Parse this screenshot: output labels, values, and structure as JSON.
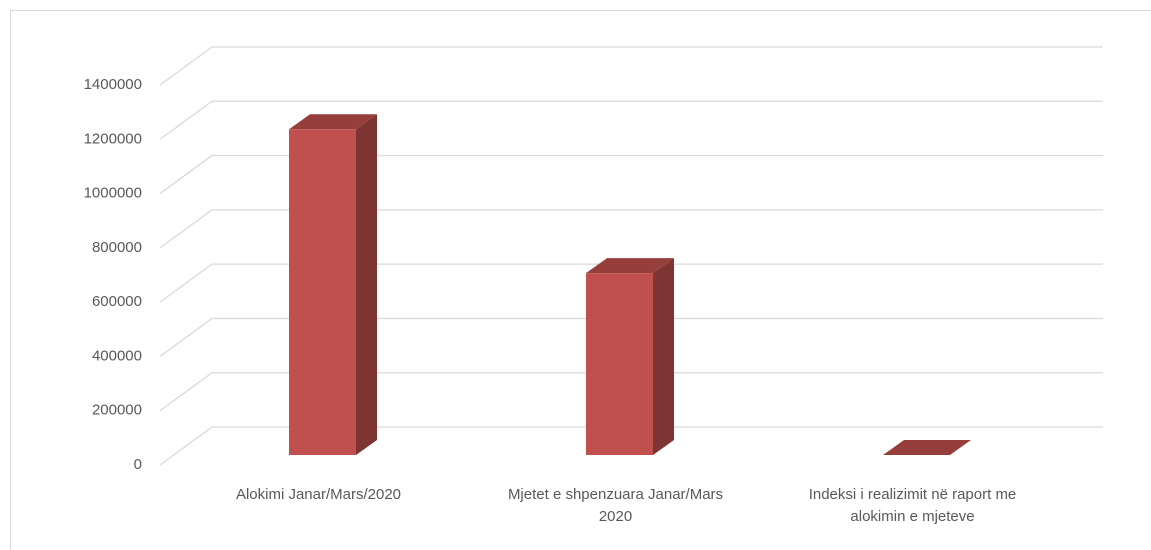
{
  "chart_data": {
    "type": "bar3d",
    "categories": [
      "Alokimi Janar/Mars/2020",
      "Mjetet e shpenzuara Janar/Mars 2020",
      "Indeksi i realizimit në raport me alokimin e mjeteve"
    ],
    "values": [
      1200000,
      670000,
      0
    ],
    "color": "#c0504d",
    "ylim": [
      0,
      1400000
    ],
    "yticks": [
      0,
      200000,
      400000,
      600000,
      800000,
      1000000,
      1200000,
      1400000
    ],
    "grid": true
  }
}
